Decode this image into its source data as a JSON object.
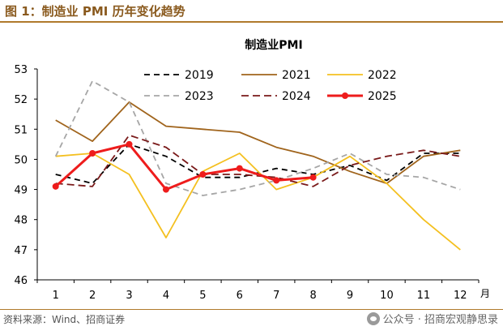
{
  "figure_title": "图 1：制造业 PMI 历年变化趋势",
  "source_note": "资料来源：Wind、招商证券",
  "watermark": "公众号 · 招商宏观静思录",
  "chart_data": {
    "type": "line",
    "title": "制造业PMI",
    "xlabel": "月",
    "ylabel": "",
    "categories": [
      "1",
      "2",
      "3",
      "4",
      "5",
      "6",
      "7",
      "8",
      "9",
      "10",
      "11",
      "12"
    ],
    "ylim": [
      46,
      53
    ],
    "yticks": [
      46,
      47,
      48,
      49,
      50,
      51,
      52,
      53
    ],
    "grid": false,
    "legend_position": "top-center",
    "series": [
      {
        "name": "2019",
        "color": "#000000",
        "dash": "7,5",
        "width": 1.8,
        "marker": false,
        "values": [
          49.5,
          49.2,
          50.5,
          50.1,
          49.4,
          49.4,
          49.7,
          49.5,
          49.8,
          49.3,
          50.2,
          50.2
        ]
      },
      {
        "name": "2021",
        "color": "#a0641c",
        "dash": "",
        "width": 1.8,
        "marker": false,
        "values": [
          51.3,
          50.6,
          51.9,
          51.1,
          51.0,
          50.9,
          50.4,
          50.1,
          49.6,
          49.2,
          50.1,
          50.3
        ]
      },
      {
        "name": "2022",
        "color": "#f4c020",
        "dash": "",
        "width": 1.8,
        "marker": false,
        "values": [
          50.1,
          50.2,
          49.5,
          47.4,
          49.6,
          50.2,
          49.0,
          49.4,
          50.1,
          49.2,
          48.0,
          47.0
        ]
      },
      {
        "name": "2023",
        "color": "#a6a6a6",
        "dash": "7,5",
        "width": 1.8,
        "marker": false,
        "values": [
          50.1,
          52.6,
          51.9,
          49.2,
          48.8,
          49.0,
          49.3,
          49.7,
          50.2,
          49.5,
          49.4,
          49.0
        ]
      },
      {
        "name": "2024",
        "color": "#7a1a1a",
        "dash": "9,5",
        "width": 1.8,
        "marker": false,
        "values": [
          49.2,
          49.1,
          50.8,
          50.4,
          49.5,
          49.5,
          49.4,
          49.1,
          49.8,
          50.1,
          50.3,
          50.1
        ]
      },
      {
        "name": "2025",
        "color": "#ee1c1c",
        "dash": "",
        "width": 3,
        "marker": true,
        "values": [
          49.1,
          50.2,
          50.5,
          49.0,
          49.5,
          49.7,
          49.3,
          49.4,
          null,
          null,
          null,
          null
        ]
      }
    ]
  }
}
